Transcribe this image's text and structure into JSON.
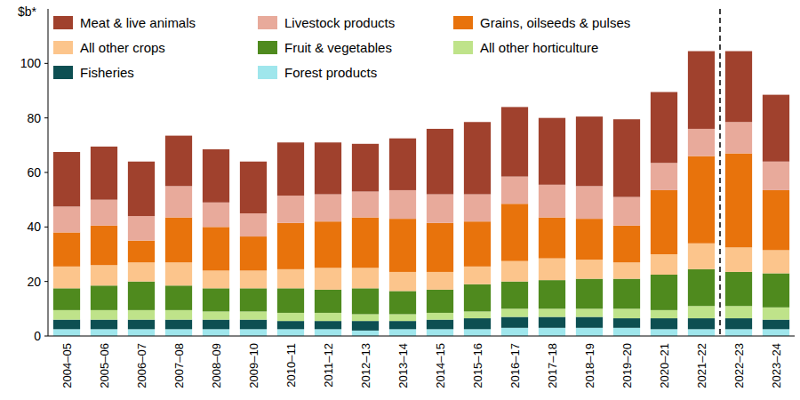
{
  "chart_data": {
    "type": "bar",
    "stacked": true,
    "grid": false,
    "legend": "top",
    "y_label": "$b*",
    "categories": [
      "2004–05",
      "2005–06",
      "2006–07",
      "2007–08",
      "2008–09",
      "2009–10",
      "2010–11",
      "2011–12",
      "2012–13",
      "2013–14",
      "2014–15",
      "2015–16",
      "2016–17",
      "2017–18",
      "2018–19",
      "2019–20",
      "2020–21",
      "2021–22",
      "2022–23",
      "2023–24"
    ],
    "ylim": [
      0,
      120
    ],
    "yticks": [
      0,
      20,
      40,
      60,
      80,
      100
    ],
    "divider": {
      "after": "2021–22",
      "line_style": "dashed"
    },
    "series": [
      {
        "name": "Meat & live animals",
        "color": "#a0412d",
        "values": [
          20,
          19.5,
          20,
          18.5,
          19.5,
          19,
          19.5,
          19,
          17.5,
          19,
          24,
          26.5,
          25.5,
          24.5,
          25.5,
          28.5,
          26,
          28.5,
          26,
          24.5
        ]
      },
      {
        "name": "Livestock products",
        "color": "#e8aa9b",
        "values": [
          9.5,
          9.5,
          9,
          11.5,
          9,
          8.5,
          10,
          10,
          9.5,
          10.5,
          10.5,
          10,
          10,
          12,
          12,
          10.5,
          10,
          10,
          11.5,
          10.5
        ]
      },
      {
        "name": "Grains, oilseeds & pulses",
        "color": "#e8730c",
        "values": [
          12.5,
          14.5,
          8,
          16.5,
          16,
          12.5,
          17,
          17,
          18.5,
          19.5,
          18,
          16.5,
          21,
          15,
          15,
          13.5,
          23.5,
          32,
          34.5,
          22
        ]
      },
      {
        "name": "All other crops",
        "color": "#fcc58c",
        "values": [
          8,
          7.5,
          7,
          8.5,
          6.5,
          6.5,
          7,
          8,
          7.5,
          7,
          6.5,
          6.5,
          7.5,
          8,
          7,
          6,
          7.5,
          9.5,
          9,
          8.5
        ]
      },
      {
        "name": "Fruit & vegetables",
        "color": "#4f8a1e",
        "values": [
          8,
          9,
          10.5,
          9,
          8.5,
          8.5,
          9,
          8.5,
          9.5,
          8.5,
          8.5,
          10,
          10,
          10.5,
          11,
          11,
          13,
          13.5,
          12.5,
          12.5
        ]
      },
      {
        "name": "All other horticulture",
        "color": "#bfe38a",
        "values": [
          3.5,
          3.5,
          3.5,
          3.5,
          3,
          3,
          3,
          3,
          2.5,
          2.5,
          2.5,
          2.5,
          3,
          3,
          3,
          3.5,
          3,
          4.5,
          4.5,
          4.5
        ]
      },
      {
        "name": "Fisheries",
        "color": "#0d4f52",
        "values": [
          3.5,
          3.5,
          3.5,
          3.5,
          3.5,
          3.5,
          3,
          3,
          3.5,
          3,
          3.5,
          4,
          4,
          4,
          4,
          3.5,
          4,
          4,
          4,
          3.5
        ]
      },
      {
        "name": "Forest products",
        "color": "#9fe6ec",
        "values": [
          2.5,
          2.5,
          2.5,
          2.5,
          2.5,
          2.5,
          2.5,
          2.5,
          2,
          2.5,
          2.5,
          2.5,
          3,
          3,
          3,
          3,
          2.5,
          2.5,
          2.5,
          2.5
        ]
      }
    ]
  }
}
